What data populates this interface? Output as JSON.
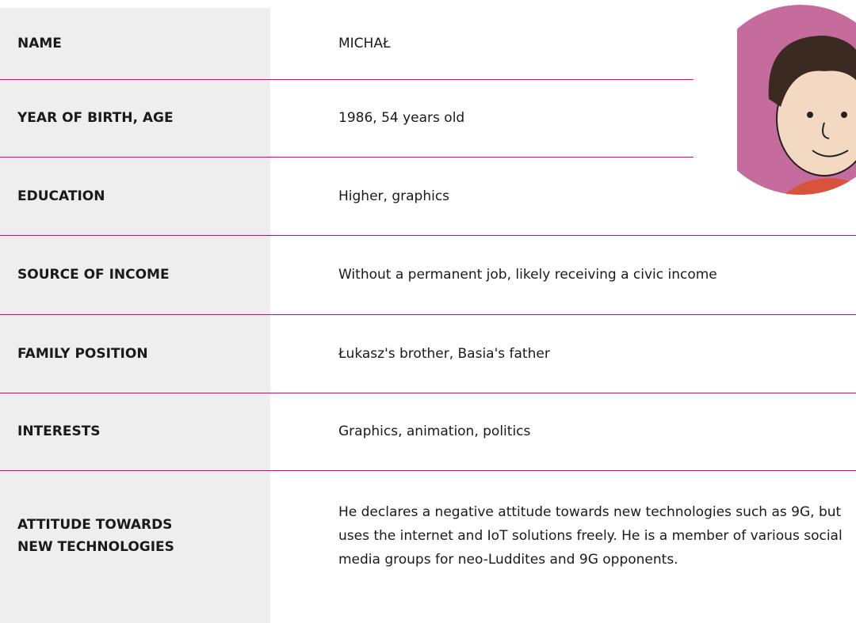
{
  "table": {
    "rows": [
      [
        "NAME",
        "MICHAŁ"
      ],
      [
        "YEAR OF BIRTH, AGE",
        "1986, 54 years old"
      ],
      [
        "EDUCATION",
        "Higher, graphics"
      ],
      [
        "SOURCE OF INCOME",
        "Without a permanent job, likely receiving a civic income"
      ],
      [
        "FAMILY POSITION",
        "Łukasz's brother, Basia's father"
      ],
      [
        "INTERESTS",
        "Graphics, animation, politics"
      ],
      [
        "ATTITUDE TOWARDS NEW TECHNOLOGIES",
        "He declares a negative attitude towards new technologies such as 9G, but uses the internet and IoT solutions freely. He is a member of various social media groups for neo-Luddites and 9G opponents."
      ]
    ]
  }
}
